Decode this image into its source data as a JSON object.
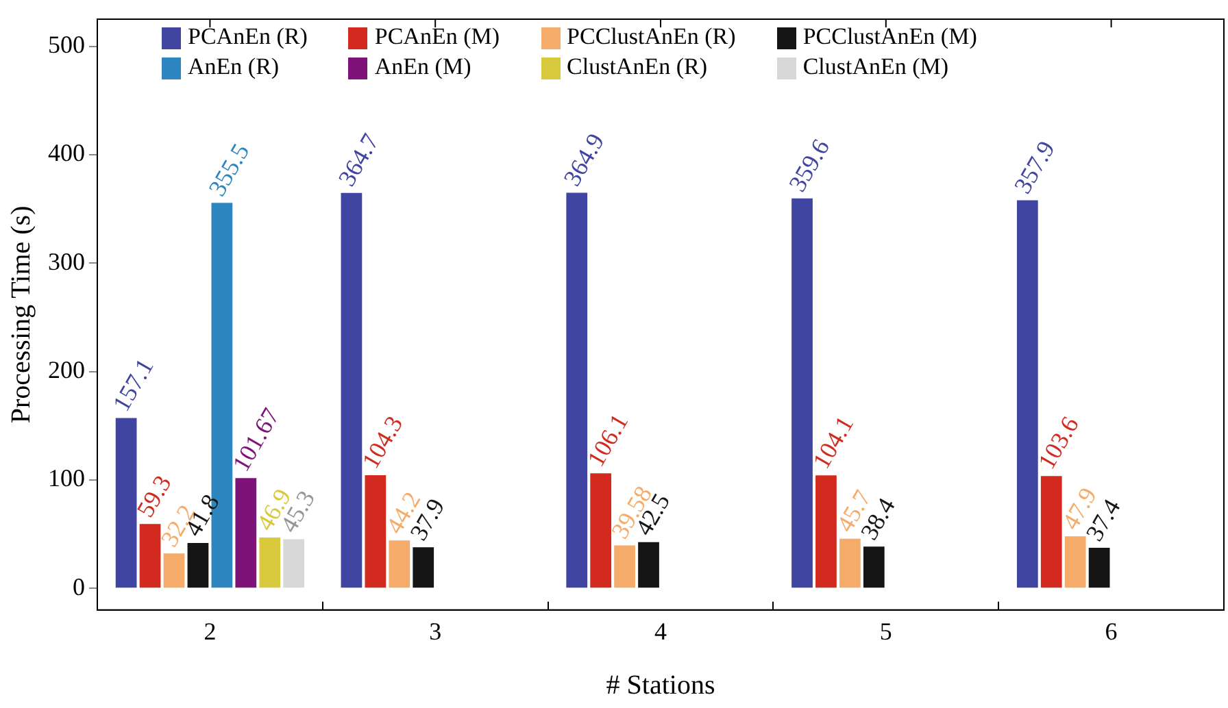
{
  "chart_data": {
    "type": "bar",
    "xlabel": "# Stations",
    "ylabel": "Processing Time (s)",
    "categories": [
      "2",
      "3",
      "4",
      "5",
      "6"
    ],
    "series": [
      {
        "name": "PCAnEn (R)",
        "color": "#3f45a0",
        "values": [
          157.1,
          364.7,
          364.9,
          359.6,
          357.9
        ]
      },
      {
        "name": "PCAnEn (M)",
        "color": "#d22a1f",
        "values": [
          59.3,
          104.3,
          106.1,
          104.1,
          103.6
        ]
      },
      {
        "name": "PCClustAnEn (R)",
        "color": "#f5ac6a",
        "values": [
          32.2,
          44.2,
          39.58,
          45.7,
          47.9
        ]
      },
      {
        "name": "PCClustAnEn (M)",
        "color": "#151515",
        "values": [
          41.8,
          37.9,
          42.5,
          38.4,
          37.4
        ]
      },
      {
        "name": "AnEn (R)",
        "color": "#2e86c1",
        "values": [
          355.5,
          null,
          null,
          null,
          null
        ]
      },
      {
        "name": "AnEn (M)",
        "color": "#7e1279",
        "values": [
          101.67,
          null,
          null,
          null,
          null
        ]
      },
      {
        "name": "ClustAnEn (R)",
        "color": "#d9c93c",
        "values": [
          46.9,
          null,
          null,
          null,
          null
        ]
      },
      {
        "name": "ClustAnEn (M)",
        "color": "#d8d8d8",
        "values": [
          45.3,
          null,
          null,
          null,
          null
        ]
      }
    ],
    "ylim": [
      -20,
      525
    ],
    "yticks": [
      0,
      100,
      200,
      300,
      400,
      500
    ],
    "data_labels": true,
    "legend": "top",
    "grid": false
  }
}
